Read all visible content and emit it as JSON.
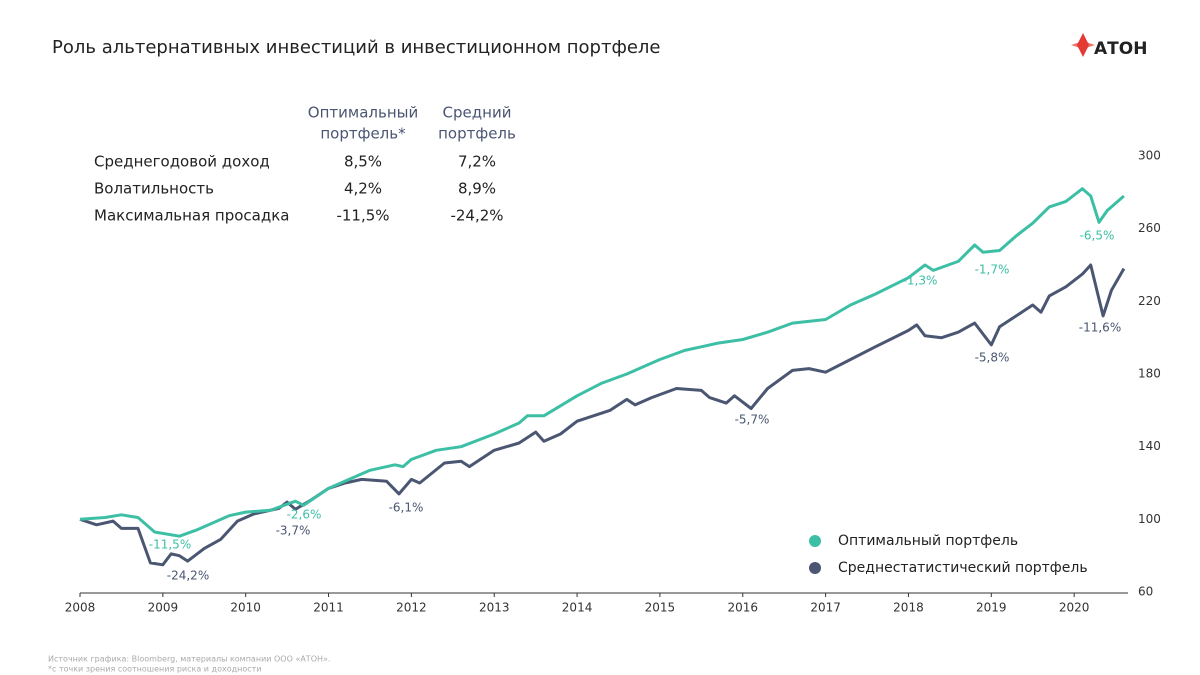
{
  "chart_data": {
    "type": "line",
    "title": "Роль альтернативных инвестиций в инвестиционном портфеле",
    "logo": "АТОН",
    "xlim": [
      2008,
      2020.65
    ],
    "xticks": [
      2008,
      2009,
      2010,
      2011,
      2012,
      2013,
      2014,
      2015,
      2016,
      2017,
      2018,
      2019,
      2020
    ],
    "ylim": [
      60,
      300
    ],
    "yticks": [
      60,
      100,
      140,
      180,
      220,
      260,
      300
    ],
    "grid": false,
    "legend": "lower right",
    "series": [
      {
        "name": "Оптимальный портфель",
        "color": "#3dbfa5",
        "x": [
          2008.0,
          2008.3,
          2008.5,
          2008.7,
          2008.9,
          2009.2,
          2009.4,
          2009.6,
          2009.8,
          2010.0,
          2010.3,
          2010.6,
          2010.7,
          2011.0,
          2011.5,
          2011.8,
          2011.9,
          2012.0,
          2012.3,
          2012.6,
          2013.0,
          2013.3,
          2013.4,
          2013.6,
          2014.0,
          2014.3,
          2014.6,
          2015.0,
          2015.3,
          2015.5,
          2015.7,
          2016.0,
          2016.3,
          2016.6,
          2017.0,
          2017.3,
          2017.6,
          2018.0,
          2018.2,
          2018.3,
          2018.6,
          2018.8,
          2018.9,
          2019.1,
          2019.3,
          2019.5,
          2019.7,
          2019.9,
          2020.1,
          2020.2,
          2020.3,
          2020.4,
          2020.6
        ],
        "values": [
          100,
          101,
          102.5,
          101,
          93,
          90.7,
          94,
          98,
          102,
          104,
          105,
          110,
          107.7,
          117,
          127,
          130,
          129,
          133,
          138,
          140,
          147,
          153,
          157,
          157,
          168,
          175,
          180,
          188,
          193,
          195,
          197,
          199,
          203,
          208,
          210,
          218,
          224,
          233,
          240,
          237,
          242,
          251,
          247,
          248,
          256,
          263,
          272,
          275,
          282,
          278,
          263.5,
          270,
          278
        ],
        "annotations": [
          "-11,5%",
          "-2,6%",
          "-1,3%",
          "-1,7%",
          "-6,5%"
        ]
      },
      {
        "name": "Среднестатистический портфель",
        "color": "#4a5672",
        "x": [
          2008.0,
          2008.2,
          2008.4,
          2008.5,
          2008.7,
          2008.85,
          2009.0,
          2009.1,
          2009.2,
          2009.3,
          2009.5,
          2009.7,
          2009.9,
          2010.1,
          2010.4,
          2010.5,
          2010.6,
          2010.8,
          2011.0,
          2011.2,
          2011.4,
          2011.7,
          2011.85,
          2012.0,
          2012.1,
          2012.4,
          2012.6,
          2012.7,
          2013.0,
          2013.3,
          2013.5,
          2013.6,
          2013.8,
          2014.0,
          2014.4,
          2014.6,
          2014.7,
          2014.9,
          2015.2,
          2015.5,
          2015.6,
          2015.8,
          2015.9,
          2016.1,
          2016.3,
          2016.6,
          2016.8,
          2017.0,
          2017.3,
          2017.6,
          2018.0,
          2018.1,
          2018.2,
          2018.4,
          2018.6,
          2018.8,
          2018.9,
          2019.0,
          2019.1,
          2019.3,
          2019.5,
          2019.6,
          2019.7,
          2019.9,
          2020.1,
          2020.2,
          2020.35,
          2020.45,
          2020.6
        ],
        "values": [
          100,
          97,
          99,
          95,
          95,
          76,
          75,
          81,
          80,
          77,
          84,
          89,
          99,
          103,
          106,
          109.5,
          105.5,
          111,
          117,
          120,
          122,
          121,
          114,
          122,
          120,
          131,
          132,
          129,
          138,
          142,
          148,
          143,
          147,
          154,
          160,
          166,
          163,
          167,
          172,
          171,
          167,
          164,
          168,
          161,
          172,
          182,
          183,
          181,
          188,
          195,
          204,
          207,
          201,
          200,
          203,
          208,
          202,
          196,
          206,
          212,
          218,
          214,
          223,
          228,
          235,
          240,
          212,
          226,
          238
        ],
        "annotations": [
          "-24,2%",
          "-3,7%",
          "-6,1%",
          "-5,7%",
          "-5,8%",
          "-11,6%"
        ]
      }
    ],
    "table": {
      "columns": [
        [
          "Оптимальный",
          "портфель*"
        ],
        [
          "Средний",
          "портфель"
        ]
      ],
      "rows": [
        [
          "Среднегодовой доход",
          "8,5%",
          "7,2%"
        ],
        [
          "Волатильность",
          "4,2%",
          "8,9%"
        ],
        [
          "Максимальная просадка",
          "-11,5%",
          "-24,2%"
        ]
      ]
    },
    "footnotes": [
      "Источник графика: Bloomberg, материалы компании ООО «АТОН».",
      "*с точки зрения соотношения риска и доходности"
    ]
  }
}
